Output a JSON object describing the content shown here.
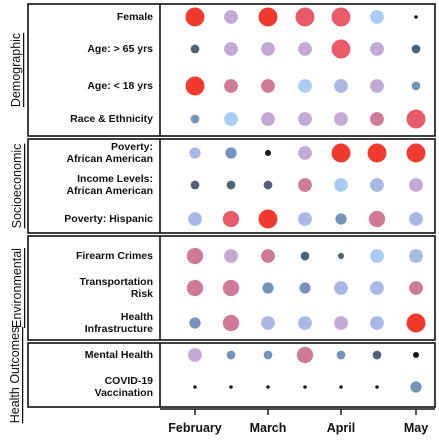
{
  "chart_data": {
    "type": "scatter",
    "xlabel": "",
    "ylabel": "",
    "x_ticks": [
      "February",
      "March",
      "April",
      "May"
    ],
    "columns": 8,
    "legend": "none",
    "colors": {
      "red": "#f03a2e",
      "pink_red": "#e8596a",
      "mauve": "#d07a9a",
      "lavender": "#c3a9d6",
      "periwinkle": "#aab8e6",
      "light_blue": "#a9cdf4",
      "steel": "#7493bb",
      "slate": "#50617a",
      "black": "#1e1e1e"
    },
    "groups": [
      {
        "name": "Demographic",
        "rows": [
          {
            "label": "Female",
            "cells": [
              {
                "color": "red",
                "size": 4
              },
              {
                "color": "lavender",
                "size": 3
              },
              {
                "color": "red",
                "size": 4
              },
              {
                "color": "pink_red",
                "size": 4
              },
              {
                "color": "pink_red",
                "size": 4
              },
              {
                "color": "light_blue",
                "size": 3
              },
              {
                "color": "black",
                "size": 1
              }
            ]
          },
          {
            "label": "Age: > 65 yrs",
            "cells": [
              {
                "color": "slate",
                "size": 2
              },
              {
                "color": "lavender",
                "size": 3
              },
              {
                "color": "lavender",
                "size": 3
              },
              {
                "color": "lavender",
                "size": 3
              },
              {
                "color": "pink_red",
                "size": 4
              },
              {
                "color": "lavender",
                "size": 3
              },
              {
                "color": "slate",
                "size": 2
              }
            ]
          },
          {
            "label": "Age: < 18 yrs",
            "cells": [
              {
                "color": "red",
                "size": 4
              },
              {
                "color": "mauve",
                "size": 3
              },
              {
                "color": "mauve",
                "size": 3
              },
              {
                "color": "light_blue",
                "size": 3
              },
              {
                "color": "periwinkle",
                "size": 3
              },
              {
                "color": "lavender",
                "size": 3
              },
              {
                "color": "steel",
                "size": 2
              }
            ]
          },
          {
            "label": "Race & Ethnicity",
            "cells": [
              {
                "color": "steel",
                "size": 2
              },
              {
                "color": "light_blue",
                "size": 3
              },
              {
                "color": "lavender",
                "size": 3
              },
              {
                "color": "lavender",
                "size": 3
              },
              {
                "color": "lavender",
                "size": 3
              },
              {
                "color": "mauve",
                "size": 3
              },
              {
                "color": "pink_red",
                "size": 4
              }
            ]
          }
        ]
      },
      {
        "name": "Socioeconomic",
        "rows": [
          {
            "label": "Poverty: African American",
            "label_lines": [
              "Poverty:",
              "African American"
            ],
            "cells": [
              {
                "color": "periwinkle",
                "size": 2.5
              },
              {
                "color": "steel",
                "size": 2.5
              },
              {
                "color": "black",
                "size": 1.5
              },
              {
                "color": "lavender",
                "size": 3
              },
              {
                "color": "red",
                "size": 4
              },
              {
                "color": "red",
                "size": 4
              },
              {
                "color": "red",
                "size": 4
              }
            ]
          },
          {
            "label": "Income Levels: African American",
            "label_lines": [
              "Income Levels:",
              "African American"
            ],
            "cells": [
              {
                "color": "slate",
                "size": 2
              },
              {
                "color": "slate",
                "size": 2
              },
              {
                "color": "slate",
                "size": 2
              },
              {
                "color": "mauve",
                "size": 3
              },
              {
                "color": "light_blue",
                "size": 3
              },
              {
                "color": "periwinkle",
                "size": 3
              },
              {
                "color": "lavender",
                "size": 3
              }
            ]
          },
          {
            "label": "Poverty: Hispanic",
            "cells": [
              {
                "color": "periwinkle",
                "size": 3
              },
              {
                "color": "pink_red",
                "size": 3.5
              },
              {
                "color": "red",
                "size": 4
              },
              {
                "color": "periwinkle",
                "size": 3
              },
              {
                "color": "steel",
                "size": 2.5
              },
              {
                "color": "mauve",
                "size": 3.5
              },
              {
                "color": "periwinkle",
                "size": 3
              }
            ]
          }
        ]
      },
      {
        "name": "Environmental",
        "rows": [
          {
            "label": "Firearm Crimes",
            "cells": [
              {
                "color": "mauve",
                "size": 3.5
              },
              {
                "color": "lavender",
                "size": 3
              },
              {
                "color": "mauve",
                "size": 3
              },
              {
                "color": "slate",
                "size": 2
              },
              {
                "color": "slate",
                "size": 1.5
              },
              {
                "color": "light_blue",
                "size": 3
              },
              {
                "color": "periwinkle",
                "size": 3
              }
            ]
          },
          {
            "label": "Transportation Risk",
            "label_lines": [
              "Transportation",
              "Risk"
            ],
            "cells": [
              {
                "color": "mauve",
                "size": 3.5
              },
              {
                "color": "mauve",
                "size": 3.5
              },
              {
                "color": "steel",
                "size": 2.5
              },
              {
                "color": "steel",
                "size": 2.5
              },
              {
                "color": "periwinkle",
                "size": 3
              },
              {
                "color": "periwinkle",
                "size": 3
              },
              {
                "color": "mauve",
                "size": 3
              }
            ]
          },
          {
            "label": "Health Infrastructure",
            "label_lines": [
              "Health",
              "Infrastructure"
            ],
            "cells": [
              {
                "color": "steel",
                "size": 2.5
              },
              {
                "color": "mauve",
                "size": 3.5
              },
              {
                "color": "periwinkle",
                "size": 3
              },
              {
                "color": "periwinkle",
                "size": 3
              },
              {
                "color": "lavender",
                "size": 3
              },
              {
                "color": "periwinkle",
                "size": 3
              },
              {
                "color": "red",
                "size": 4
              }
            ]
          }
        ]
      },
      {
        "name": "Health Outcomes",
        "rows": [
          {
            "label": "Mental Health",
            "cells": [
              {
                "color": "lavender",
                "size": 3
              },
              {
                "color": "steel",
                "size": 2
              },
              {
                "color": "steel",
                "size": 2
              },
              {
                "color": "mauve",
                "size": 3.5
              },
              {
                "color": "steel",
                "size": 2
              },
              {
                "color": "slate",
                "size": 2
              },
              {
                "color": "black",
                "size": 1.5
              }
            ]
          },
          {
            "label": "COVID-19 Vaccination",
            "label_lines": [
              "COVID-19",
              "Vaccination"
            ],
            "cells": [
              {
                "color": "black",
                "size": 1
              },
              {
                "color": "black",
                "size": 1
              },
              {
                "color": "black",
                "size": 1
              },
              {
                "color": "black",
                "size": 1
              },
              {
                "color": "black",
                "size": 1
              },
              {
                "color": "black",
                "size": 1
              },
              {
                "color": "steel",
                "size": 2.5
              }
            ]
          }
        ]
      }
    ]
  }
}
